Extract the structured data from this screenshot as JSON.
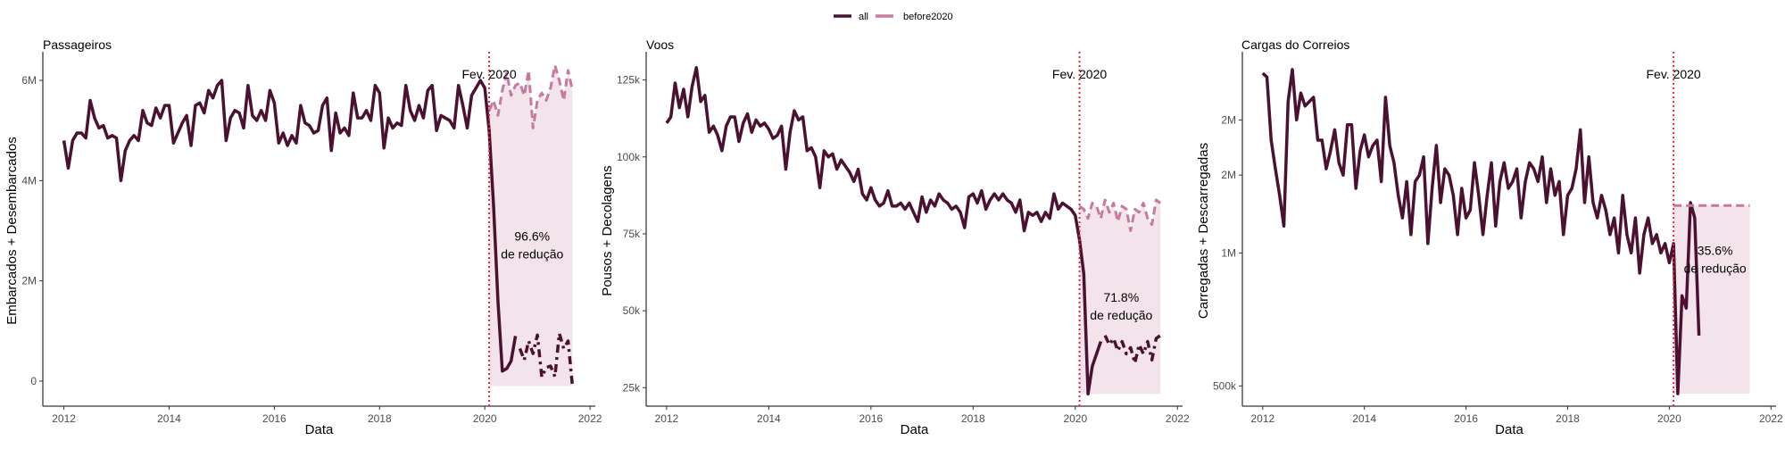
{
  "legend": {
    "items": [
      {
        "label": "all",
        "color": "#4a1130",
        "dash": "solid"
      },
      {
        "label": "before2020",
        "color": "#c57aa0",
        "dash": "dash"
      }
    ]
  },
  "chart_data": [
    {
      "type": "line",
      "title": "Passageiros",
      "xlabel": "Data",
      "ylabel": "Embarcados + Desembarcados",
      "xlim": [
        2011.6,
        2022.1
      ],
      "ylim": [
        -500000,
        6500000
      ],
      "x_ticks": [
        2012,
        2014,
        2016,
        2018,
        2020,
        2022
      ],
      "x_tick_labels": [
        "2012",
        "2014",
        "2016",
        "2018",
        "2020",
        "2022"
      ],
      "y_ticks": [
        0,
        2000000,
        4000000,
        6000000
      ],
      "y_tick_labels": [
        "0",
        "2M",
        "4M",
        "6M"
      ],
      "vline": {
        "x": 2020.083,
        "label": "Fev. 2020"
      },
      "annotation": {
        "lines": [
          "96.6%",
          "de redução"
        ],
        "x": 2020.9,
        "y": 2800000
      },
      "series": [
        {
          "name": "all",
          "x_start": 2012.0,
          "step": 0.08333,
          "values": [
            4800000,
            4250000,
            4800000,
            4950000,
            4950000,
            4850000,
            5600000,
            5250000,
            5050000,
            5100000,
            4850000,
            4900000,
            4850000,
            4000000,
            4600000,
            4800000,
            4900000,
            4800000,
            5400000,
            5150000,
            5100000,
            5450000,
            5250000,
            5500000,
            5500000,
            4750000,
            4950000,
            5150000,
            5300000,
            4700000,
            5500000,
            5550000,
            5350000,
            5800000,
            5650000,
            5900000,
            6000000,
            4800000,
            5250000,
            5400000,
            5350000,
            5050000,
            5900000,
            5300000,
            5200000,
            5400000,
            5200000,
            5800000,
            5550000,
            4750000,
            4950000,
            4700000,
            4900000,
            4750000,
            5500000,
            5150000,
            5100000,
            4950000,
            5000000,
            5500000,
            5650000,
            4600000,
            5350000,
            4950000,
            5050000,
            4900000,
            5750000,
            5250000,
            5250000,
            5400000,
            5200000,
            5900000,
            5750000,
            4650000,
            5250000,
            5050000,
            5150000,
            5100000,
            5900000,
            5400000,
            5200000,
            5500000,
            5250000,
            5800000,
            5900000,
            5000000,
            5300000,
            5250000,
            5200000,
            5050000,
            5900000,
            5500000,
            5050000,
            5700000,
            5850000,
            6000000,
            5850000,
            5000000,
            3500000,
            1600000,
            200000,
            250000,
            400000,
            900000
          ],
          "dashed_values": [
            650000,
            420000,
            800000,
            550000,
            920000,
            80000,
            270000,
            300000,
            90000,
            950000,
            650000,
            800000,
            -100000
          ]
        },
        {
          "name": "before2020",
          "x_start": 2020.083,
          "step": 0.08333,
          "values": [
            5400000,
            5600000,
            5300000,
            5800000,
            6150000,
            5700000,
            5900000,
            5950000,
            5700000,
            6200000,
            5050000,
            5600000,
            5750000,
            5600000,
            5850000,
            6300000,
            6000000,
            5600000,
            6200000,
            5800000
          ],
          "ribbon": true
        }
      ]
    },
    {
      "type": "line",
      "title": "Voos",
      "xlabel": "Data",
      "ylabel": "Pousos + Decolagens",
      "xlim": [
        2011.6,
        2022.1
      ],
      "ylim": [
        19000,
        133000
      ],
      "x_ticks": [
        2012,
        2014,
        2016,
        2018,
        2020,
        2022
      ],
      "x_tick_labels": [
        "2012",
        "2014",
        "2016",
        "2018",
        "2020",
        "2022"
      ],
      "y_ticks": [
        25000,
        50000,
        75000,
        100000,
        125000
      ],
      "y_tick_labels": [
        "25k",
        "50k",
        "75k",
        "100k",
        "125k"
      ],
      "vline": {
        "x": 2020.083,
        "label": "Fev. 2020"
      },
      "annotation": {
        "lines": [
          "71.8%",
          "de redução"
        ],
        "x": 2020.9,
        "y": 53000
      },
      "series": [
        {
          "name": "all",
          "x_start": 2012.0,
          "step": 0.08333,
          "values": [
            111000,
            113000,
            124000,
            116000,
            122000,
            113000,
            123000,
            129000,
            118000,
            120000,
            108000,
            110000,
            107000,
            102000,
            110000,
            113000,
            113000,
            105000,
            111000,
            114000,
            108000,
            112000,
            110000,
            111000,
            109000,
            106000,
            107000,
            110000,
            96000,
            108000,
            115000,
            112000,
            113000,
            102000,
            103000,
            100000,
            90000,
            102000,
            100000,
            101000,
            96000,
            99000,
            97000,
            95000,
            92000,
            96000,
            88000,
            86000,
            90000,
            86000,
            84000,
            85000,
            89000,
            84000,
            84000,
            85000,
            83000,
            85000,
            82000,
            79000,
            87000,
            82000,
            86000,
            84000,
            88000,
            86000,
            85000,
            83000,
            84000,
            82000,
            77000,
            87000,
            88000,
            85000,
            89000,
            83000,
            86000,
            88000,
            86000,
            88000,
            86000,
            85000,
            82000,
            86000,
            76000,
            82000,
            81000,
            82000,
            79000,
            82000,
            80000,
            88000,
            83000,
            85000,
            84000,
            83000,
            81000,
            73000,
            62000,
            23000,
            32000,
            36000,
            40000
          ],
          "dashed_values": [
            42000,
            39000,
            41000,
            37000,
            40000,
            36000,
            38000,
            33000,
            39000,
            36000,
            40000,
            34000,
            41000,
            42000
          ]
        },
        {
          "name": "before2020",
          "x_start": 2020.083,
          "step": 0.08333,
          "values": [
            84000,
            83000,
            80000,
            85000,
            84000,
            80000,
            86000,
            82000,
            85000,
            79000,
            84000,
            83000,
            76000,
            83000,
            82000,
            85000,
            80000,
            78000,
            86000,
            85000
          ],
          "ribbon": true
        }
      ]
    },
    {
      "type": "line",
      "title": "Cargas do Correios",
      "xlabel": "Data",
      "ylabel": "Carregadas + Descarregadas",
      "xlim": [
        2011.6,
        2022.1
      ],
      "ylim": [
        450000,
        2800000
      ],
      "log_y": true,
      "x_ticks": [
        2012,
        2014,
        2016,
        2018,
        2020,
        2022
      ],
      "x_tick_labels": [
        "2012",
        "2014",
        "2016",
        "2018",
        "2020",
        "2022"
      ],
      "y_ticks": [
        500000,
        1000000,
        1500000,
        2000000
      ],
      "y_tick_labels": [
        "500k",
        "1M",
        "2M",
        "2M"
      ],
      "vline": {
        "x": 2020.083,
        "label": "Fev. 2020"
      },
      "annotation": {
        "lines": [
          "35.6%",
          "de redução"
        ],
        "x": 2020.9,
        "y": 990000
      },
      "series": [
        {
          "name": "all",
          "x_start": 2012.0,
          "step": 0.08333,
          "values": [
            2550000,
            2500000,
            1800000,
            1550000,
            1350000,
            1150000,
            2200000,
            2600000,
            2000000,
            2300000,
            2150000,
            2200000,
            2250000,
            1800000,
            1800000,
            1550000,
            1700000,
            1900000,
            1600000,
            1500000,
            1950000,
            1950000,
            1400000,
            1700000,
            1850000,
            1650000,
            1750000,
            1800000,
            1450000,
            2250000,
            1750000,
            1600000,
            1350000,
            1200000,
            1450000,
            1100000,
            1450000,
            1500000,
            1650000,
            1050000,
            1400000,
            1750000,
            1300000,
            1550000,
            1500000,
            1350000,
            1100000,
            1400000,
            1200000,
            1250000,
            1600000,
            1350000,
            1100000,
            1350000,
            1600000,
            1150000,
            1450000,
            1600000,
            1400000,
            1450000,
            1550000,
            1200000,
            1450000,
            1600000,
            1550000,
            1450000,
            1650000,
            1300000,
            1550000,
            1350000,
            1450000,
            1100000,
            1350000,
            1400000,
            1550000,
            1900000,
            1300000,
            1650000,
            1300000,
            1200000,
            1350000,
            1250000,
            1100000,
            1200000,
            1000000,
            1350000,
            1100000,
            1000000,
            1200000,
            900000,
            1100000,
            1200000,
            1050000,
            1100000,
            1000000,
            1050000,
            950000,
            1050000,
            480000,
            800000,
            750000,
            1300000,
            1200000,
            650000
          ]
        },
        {
          "name": "before2020",
          "x_start": 2020.083,
          "step": 0.08333,
          "values": [
            1280000,
            1280000,
            1280000,
            1280000,
            1280000,
            1280000,
            1280000,
            1280000,
            1280000,
            1280000,
            1280000,
            1280000,
            1280000,
            1280000,
            1280000,
            1280000,
            1280000,
            1280000,
            1280000
          ],
          "ribbon": true
        }
      ]
    }
  ]
}
